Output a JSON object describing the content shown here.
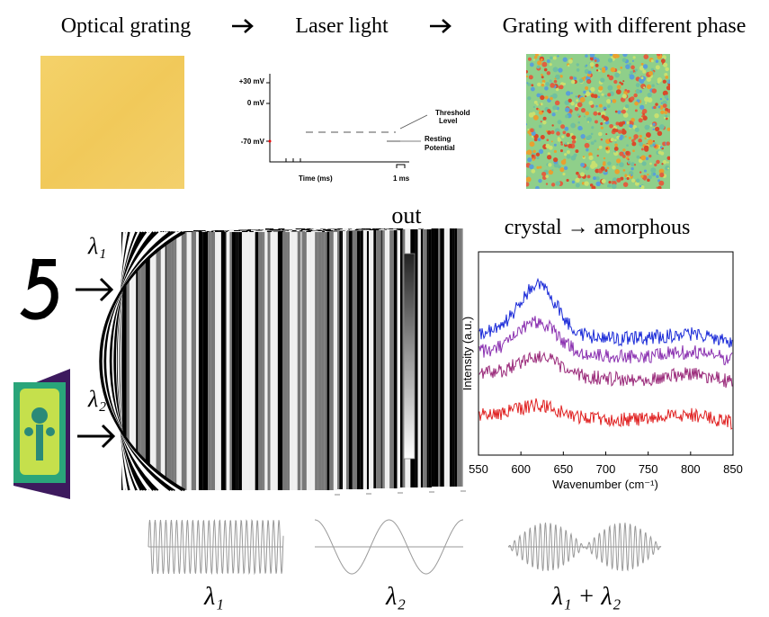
{
  "header": {
    "steps": [
      "Optical grating",
      "Laser light",
      "Grating with different phase"
    ]
  },
  "potential_plot": {
    "y_labels": [
      "+30 mV",
      "0 mV",
      "-70 mV"
    ],
    "threshold_label": [
      "Threshold",
      "Level"
    ],
    "resting_label": [
      "Resting",
      "Potential"
    ],
    "x_label": "Time (ms)",
    "scale_label": "1 ms"
  },
  "inputs": {
    "labels": [
      "λ₁",
      "λ₂"
    ]
  },
  "output": {
    "label": "out"
  },
  "spectrum": {
    "title": "crystal → amorphous",
    "y_label": "Intensity (a.u.)",
    "x_label": "Wavenumber (cm⁻¹)",
    "xlim": [
      550,
      850
    ],
    "xticks": [
      550,
      600,
      650,
      700,
      750,
      800,
      850
    ]
  },
  "waveforms": {
    "labels": [
      "λ₁",
      "λ₂",
      "λ₁ + λ₂"
    ]
  }
}
